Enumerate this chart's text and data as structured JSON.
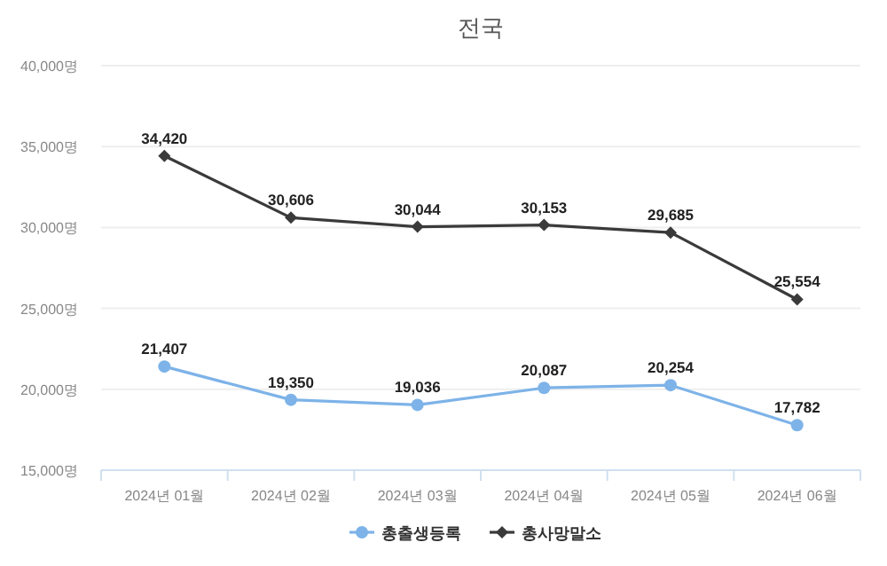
{
  "chart_data": {
    "type": "line",
    "title": "전국",
    "categories": [
      "2024년 01월",
      "2024년 02월",
      "2024년 03월",
      "2024년 04월",
      "2024년 05월",
      "2024년 06월"
    ],
    "series": [
      {
        "name": "총출생등록",
        "color": "#7db3e8",
        "marker": "circle",
        "values": [
          21407,
          19350,
          19036,
          20087,
          20254,
          17782
        ],
        "value_labels": [
          "21,407",
          "19,350",
          "19,036",
          "20,087",
          "20,254",
          "17,782"
        ]
      },
      {
        "name": "총사망말소",
        "color": "#3a3a3a",
        "marker": "diamond",
        "values": [
          34420,
          30606,
          30044,
          30153,
          29685,
          25554
        ],
        "value_labels": [
          "34,420",
          "30,606",
          "30,044",
          "30,153",
          "29,685",
          "25,554"
        ]
      }
    ],
    "ylim": [
      15000,
      40000
    ],
    "yticks": [
      {
        "value": 15000,
        "label": "15,000명"
      },
      {
        "value": 20000,
        "label": "20,000명"
      },
      {
        "value": 25000,
        "label": "25,000명"
      },
      {
        "value": 30000,
        "label": "30,000명"
      },
      {
        "value": 35000,
        "label": "35,000명"
      },
      {
        "value": 40000,
        "label": "40,000명"
      }
    ],
    "grid": "y",
    "legend": "bottom"
  }
}
